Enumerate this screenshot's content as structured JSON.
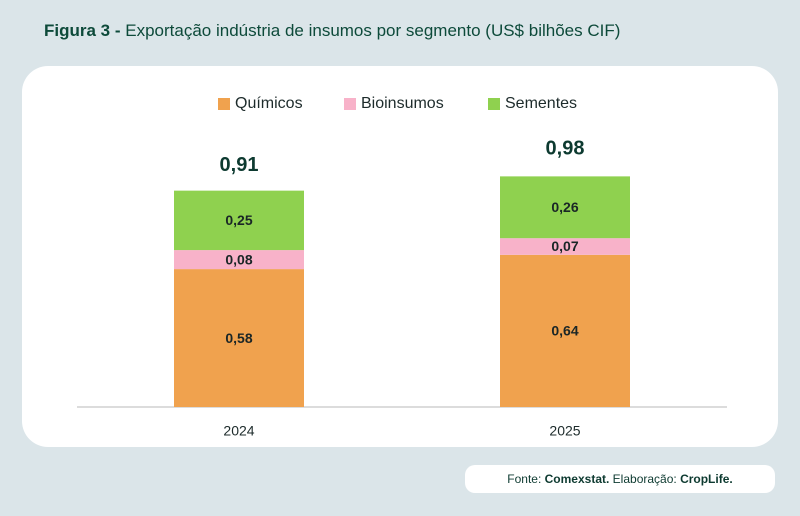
{
  "chart_data": {
    "type": "stacked_bar",
    "figure_label": "Figura 3 -",
    "title": "Exportação indústria de insumos por segmento (US$ bilhões CIF)",
    "categories": [
      "2024",
      "2025"
    ],
    "series": [
      {
        "name": "Químicos",
        "color": "#f0a24e",
        "values": [
          0.58,
          0.64
        ],
        "value_labels": [
          "0,58",
          "0,64"
        ]
      },
      {
        "name": "Bioinsumos",
        "color": "#f8b2c9",
        "values": [
          0.08,
          0.07
        ],
        "value_labels": [
          "0,08",
          "0,07"
        ]
      },
      {
        "name": "Sementes",
        "color": "#8fd14f",
        "values": [
          0.25,
          0.26
        ],
        "value_labels": [
          "0,25",
          "0,26"
        ]
      }
    ],
    "totals": [
      0.91,
      0.98
    ],
    "total_labels": [
      "0,91",
      "0,98"
    ],
    "source_label": "Fonte:",
    "source": "Comexstat.",
    "credit_label": "Elaboração:",
    "credit": "CropLife."
  }
}
